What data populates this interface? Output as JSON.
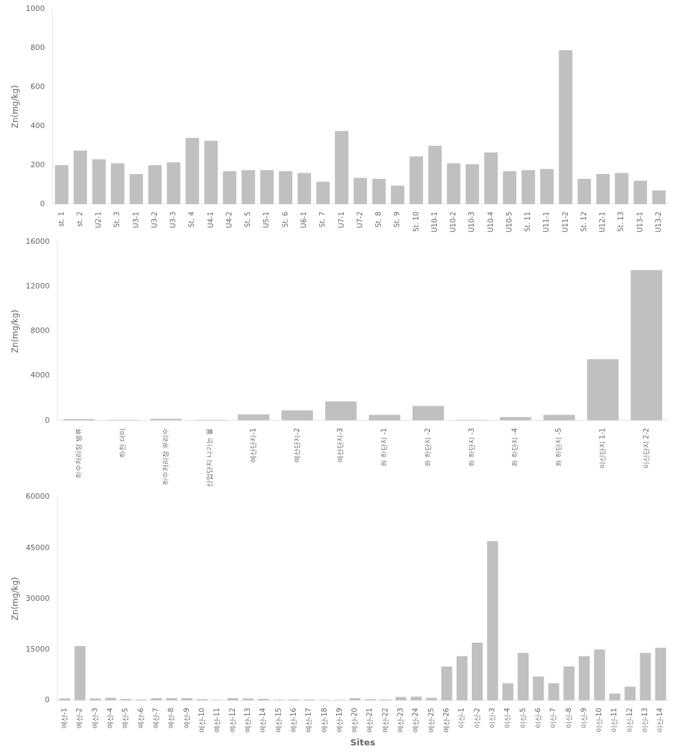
{
  "chart_data": [
    {
      "type": "bar",
      "categories": [
        "st. 1",
        "st. 2",
        "U2-1",
        "St. 3",
        "U3-1",
        "U3-2",
        "U3-3",
        "St. 4",
        "U4-1",
        "U4-2",
        "St. 5",
        "U5-1",
        "St. 6",
        "U6-1",
        "St. 7",
        "U7-1",
        "U7-2",
        "St. 8",
        "St. 9",
        "St. 10",
        "U10-1",
        "U10-2",
        "U10-3",
        "U10-4",
        "U10-5",
        "St. 11",
        "U11-1",
        "U11-2",
        "St. 12",
        "U12-1",
        "St. 13",
        "U13-1",
        "U13-2"
      ],
      "values": [
        200,
        275,
        230,
        210,
        155,
        200,
        215,
        340,
        325,
        170,
        175,
        175,
        170,
        160,
        115,
        375,
        135,
        130,
        95,
        245,
        300,
        210,
        205,
        265,
        170,
        175,
        180,
        790,
        130,
        155,
        160,
        120,
        70
      ],
      "color": "#c0c0c0",
      "ylabel": "Zn(mg/kg)",
      "ylim": [
        0,
        1000
      ],
      "yticks": [
        0,
        200,
        400,
        600,
        800,
        1000
      ],
      "grid": false
    },
    {
      "type": "bar",
      "categories": [
        "하수처리장 방류",
        "하천 더미",
        "하수처리장 유리수",
        "산업단지 나가는 물",
        "예산단지-1",
        "예산단지-2",
        "예산단지-3",
        "좌 하단지 -1",
        "좌 하단지 -2",
        "좌 하단지 -3",
        "좌 하단지 -4",
        "좌 하단지 -5",
        "이신단지 1-1",
        "이신단지 2-2"
      ],
      "values": [
        120,
        50,
        150,
        50,
        550,
        900,
        1700,
        500,
        1300,
        50,
        300,
        500,
        5500,
        13500
      ],
      "color": "#c0c0c0",
      "ylabel": "Zn(mg/kg)",
      "ylim": [
        0,
        16000
      ],
      "yticks": [
        0,
        4000,
        8000,
        12000,
        16000
      ],
      "grid": false
    },
    {
      "type": "bar",
      "categories": [
        "예산-1",
        "예산-2",
        "예산-3",
        "예산-4",
        "예산-5",
        "예산-6",
        "예산-7",
        "예산-8",
        "예산-9",
        "예산-10",
        "예산-11",
        "예산-12",
        "예산-13",
        "예산-14",
        "예산-15",
        "예산-16",
        "예산-17",
        "예산-18",
        "예산-19",
        "예산-20",
        "예산-21",
        "예산-22",
        "예산-23",
        "예산-24",
        "예산-25",
        "예산-26",
        "이신-1",
        "이신-2",
        "이신-3",
        "이신-4",
        "이신-5",
        "이신-6",
        "이신-7",
        "이신-8",
        "이신-9",
        "이신-10",
        "이신-11",
        "이신-12",
        "이신-13",
        "이신-14"
      ],
      "values": [
        500,
        16000,
        500,
        700,
        350,
        200,
        600,
        600,
        600,
        300,
        100,
        600,
        500,
        400,
        150,
        200,
        200,
        100,
        100,
        600,
        300,
        200,
        1000,
        1100,
        700,
        10000,
        13000,
        17000,
        47000,
        5000,
        14000,
        7000,
        5000,
        10000,
        13000,
        15000,
        2000,
        4000,
        14000,
        15500
      ],
      "color": "#c0c0c0",
      "xlabel": "Sites",
      "ylabel": "Zn(mg/kg)",
      "ylim": [
        0,
        60000
      ],
      "yticks": [
        0,
        15000,
        30000,
        45000,
        60000
      ],
      "grid": false
    }
  ]
}
